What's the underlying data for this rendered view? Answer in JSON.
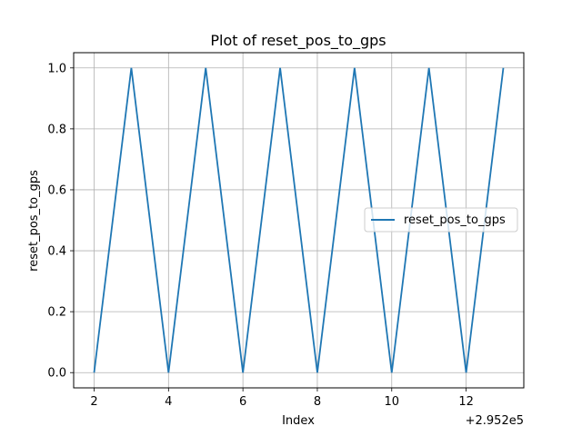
{
  "chart_data": {
    "type": "line",
    "title": "Plot of reset_pos_to_gps",
    "xlabel": "Index",
    "ylabel": "reset_pos_to_gps",
    "offset_text": "+2.952e5",
    "xlim": [
      1.45,
      13.55
    ],
    "ylim": [
      -0.05,
      1.05
    ],
    "x_ticks": [
      2,
      4,
      6,
      8,
      10,
      12
    ],
    "x_tick_labels": [
      "2",
      "4",
      "6",
      "8",
      "10",
      "12"
    ],
    "y_ticks": [
      0.0,
      0.2,
      0.4,
      0.6,
      0.8,
      1.0
    ],
    "y_tick_labels": [
      "0.0",
      "0.2",
      "0.4",
      "0.6",
      "0.8",
      "1.0"
    ],
    "grid": true,
    "legend_position": "center-right",
    "series": [
      {
        "name": "reset_pos_to_gps",
        "color": "#1f77b4",
        "x": [
          2,
          3,
          4,
          5,
          6,
          7,
          8,
          9,
          10,
          11,
          12,
          13
        ],
        "y": [
          0,
          1,
          0,
          1,
          0,
          1,
          0,
          1,
          0,
          1,
          0,
          1
        ]
      }
    ]
  }
}
